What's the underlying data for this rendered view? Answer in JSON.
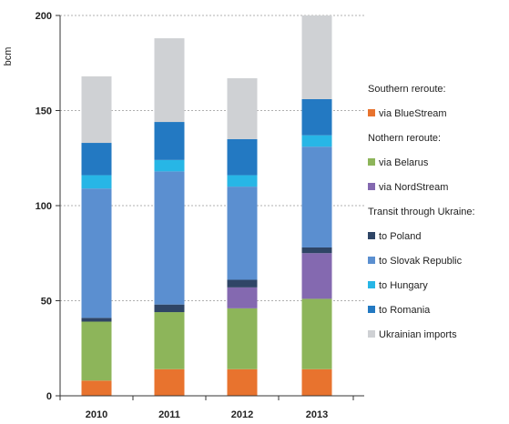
{
  "chart_data": {
    "type": "bar",
    "stacked": true,
    "categories": [
      "2010",
      "2011",
      "2012",
      "2013"
    ],
    "ylabel": "bcm",
    "ylim": [
      0,
      200
    ],
    "yticks": [
      0,
      50,
      100,
      150,
      200
    ],
    "grid": "horizontal-dashed",
    "legend_position": "right",
    "series": [
      {
        "name": "via BlueStream",
        "group": "Southern reroute:",
        "color": "#e8732e",
        "values": [
          8,
          14,
          14,
          14
        ]
      },
      {
        "name": "via Belarus",
        "group": "Nothern reroute:",
        "color": "#8db55a",
        "values": [
          31,
          30,
          32,
          37
        ]
      },
      {
        "name": "via NordStream",
        "group": "Nothern reroute:",
        "color": "#8469b0",
        "values": [
          0,
          0,
          11,
          24
        ]
      },
      {
        "name": "to Poland",
        "group": "Transit through Ukraine:",
        "color": "#2f4566",
        "values": [
          2,
          4,
          4,
          3
        ]
      },
      {
        "name": "to Slovak Republic",
        "group": "Transit through Ukraine:",
        "color": "#5b8fd0",
        "values": [
          68,
          70,
          49,
          53
        ]
      },
      {
        "name": "to Hungary",
        "group": "Transit through Ukraine:",
        "color": "#27b6e6",
        "values": [
          7,
          6,
          6,
          6
        ]
      },
      {
        "name": "to Romania",
        "group": "Transit through Ukraine:",
        "color": "#2379c2",
        "values": [
          17,
          20,
          19,
          19
        ]
      },
      {
        "name": "Ukrainian imports",
        "group": "",
        "color": "#cfd1d4",
        "values": [
          35,
          44,
          32,
          44
        ]
      }
    ]
  },
  "legend": [
    {
      "kind": "heading",
      "label": "Southern reroute:"
    },
    {
      "kind": "item",
      "label": "via BlueStream",
      "color": "#e8732e"
    },
    {
      "kind": "heading",
      "label": "Nothern reroute:"
    },
    {
      "kind": "item",
      "label": "via Belarus",
      "color": "#8db55a"
    },
    {
      "kind": "item",
      "label": "via NordStream",
      "color": "#8469b0"
    },
    {
      "kind": "heading",
      "label": "Transit through Ukraine:"
    },
    {
      "kind": "item",
      "label": "to Poland",
      "color": "#2f4566"
    },
    {
      "kind": "item",
      "label": "to Slovak Republic",
      "color": "#5b8fd0"
    },
    {
      "kind": "item",
      "label": "to Hungary",
      "color": "#27b6e6"
    },
    {
      "kind": "item",
      "label": "to Romania",
      "color": "#2379c2"
    },
    {
      "kind": "item",
      "label": "Ukrainian imports",
      "color": "#cfd1d4"
    }
  ]
}
